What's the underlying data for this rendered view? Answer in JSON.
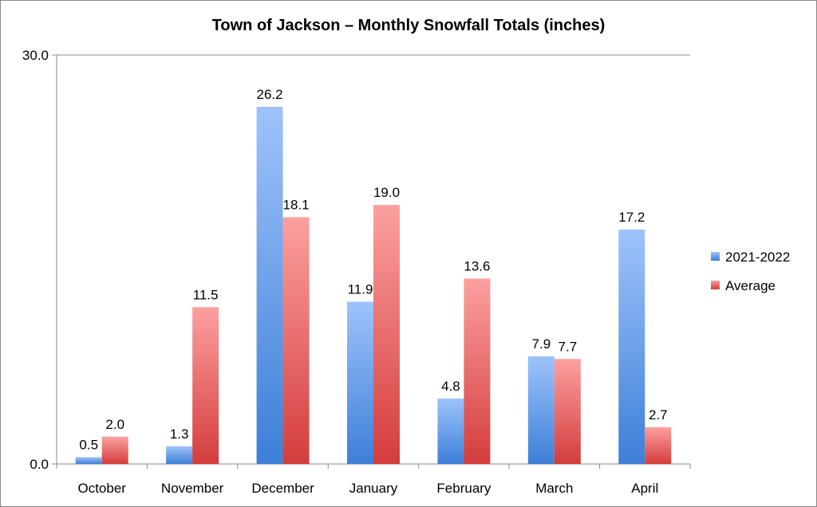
{
  "chart_data": {
    "type": "bar",
    "title": "Town of Jackson – Monthly Snowfall Totals (inches)",
    "categories": [
      "October",
      "November",
      "December",
      "January",
      "February",
      "March",
      "April"
    ],
    "series": [
      {
        "name": "2021-2022",
        "values": [
          0.5,
          1.3,
          26.2,
          11.9,
          4.8,
          7.9,
          17.2
        ],
        "labels": [
          "0.5",
          "1.3",
          "26.2",
          "11.9",
          "4.8",
          "7.9",
          "17.2"
        ],
        "color_top": "#9ec3fb",
        "color_bottom": "#3d7fd8"
      },
      {
        "name": "Average",
        "values": [
          2.0,
          11.5,
          18.1,
          19.0,
          13.6,
          7.7,
          2.7
        ],
        "labels": [
          "2.0",
          "11.5",
          "18.1",
          "19.0",
          "13.6",
          "7.7",
          "2.7"
        ],
        "color_top": "#fca0a0",
        "color_bottom": "#d43c3c"
      }
    ],
    "yticks": [
      "0.0",
      "30.0"
    ],
    "ylim": [
      0,
      30
    ],
    "xlabel": "",
    "ylabel": "",
    "grid": false,
    "legend_position": "right"
  }
}
